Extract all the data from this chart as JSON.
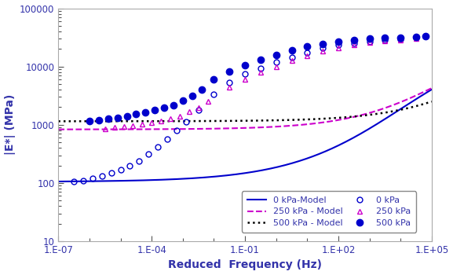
{
  "title": "",
  "xlabel": "Reduced  Frequency (Hz)",
  "ylabel": "|E*| (MPa)",
  "xlim_log": [
    -7,
    5
  ],
  "ylim_log": [
    1,
    5
  ],
  "background_color": "#ffffff",
  "model_0kPa": {
    "label": "0 kPa-Model",
    "color": "#0000cc",
    "linestyle": "solid",
    "linewidth": 1.5,
    "params": {
      "delta": 2.02,
      "alpha": 2.5,
      "beta": 2.2,
      "gamma": -0.55
    }
  },
  "model_250kPa": {
    "label": "250 kPa - Model",
    "color": "#cc00cc",
    "linestyle": "dashed",
    "linewidth": 1.5,
    "params": {
      "delta": 2.92,
      "alpha": 1.62,
      "beta": 3.5,
      "gamma": -0.65
    }
  },
  "model_500kPa": {
    "label": "500 kPa - Model",
    "color": "#000000",
    "linestyle": "dotted",
    "linewidth": 1.8,
    "params": {
      "delta": 3.06,
      "alpha": 1.52,
      "beta": 4.5,
      "gamma": -0.65
    }
  },
  "data_0kPa": {
    "label": "0 kPa",
    "color": "#0000cc",
    "marker": "o",
    "fillstyle": "none",
    "markersize": 5,
    "log_freq": [
      -6.5,
      -6.2,
      -5.9,
      -5.6,
      -5.3,
      -5.0,
      -4.7,
      -4.4,
      -4.1,
      -3.8,
      -3.5,
      -3.2,
      -2.9,
      -2.5,
      -2.0,
      -1.5,
      -1.0,
      -0.5,
      0.0,
      0.5,
      1.0,
      1.5,
      2.0,
      2.5,
      3.0,
      3.5,
      4.0,
      4.5
    ],
    "log_E": [
      2.02,
      2.04,
      2.08,
      2.12,
      2.18,
      2.23,
      2.3,
      2.38,
      2.5,
      2.62,
      2.75,
      2.9,
      3.05,
      3.25,
      3.52,
      3.72,
      3.87,
      3.97,
      4.07,
      4.16,
      4.24,
      4.32,
      4.37,
      4.4,
      4.43,
      4.45,
      4.47,
      4.49
    ]
  },
  "data_250kPa": {
    "label": "250 kPa",
    "color": "#cc00cc",
    "marker": "^",
    "fillstyle": "none",
    "markersize": 5,
    "log_freq": [
      -5.5,
      -5.2,
      -4.9,
      -4.6,
      -4.3,
      -4.0,
      -3.7,
      -3.4,
      -3.1,
      -2.8,
      -2.5,
      -2.2,
      -1.5,
      -1.0,
      -0.5,
      0.0,
      0.5,
      1.0,
      1.5,
      2.0,
      2.5,
      3.0,
      3.5,
      4.0,
      4.5
    ],
    "log_E": [
      2.93,
      2.95,
      2.97,
      2.99,
      3.01,
      3.04,
      3.07,
      3.1,
      3.15,
      3.22,
      3.3,
      3.4,
      3.65,
      3.78,
      3.9,
      4.0,
      4.1,
      4.18,
      4.26,
      4.32,
      4.37,
      4.41,
      4.44,
      4.46,
      4.48
    ]
  },
  "data_500kPa": {
    "label": "500 kPa",
    "color": "#0000cc",
    "marker": "o",
    "fillstyle": "full",
    "markersize": 6,
    "log_freq": [
      -6.0,
      -5.7,
      -5.4,
      -5.1,
      -4.8,
      -4.5,
      -4.2,
      -3.9,
      -3.6,
      -3.3,
      -3.0,
      -2.7,
      -2.4,
      -2.0,
      -1.5,
      -1.0,
      -0.5,
      0.0,
      0.5,
      1.0,
      1.5,
      2.0,
      2.5,
      3.0,
      3.5,
      4.0,
      4.5,
      4.8
    ],
    "log_E": [
      3.06,
      3.08,
      3.1,
      3.12,
      3.15,
      3.18,
      3.21,
      3.25,
      3.29,
      3.34,
      3.42,
      3.5,
      3.6,
      3.78,
      3.92,
      4.02,
      4.12,
      4.2,
      4.28,
      4.34,
      4.39,
      4.43,
      4.46,
      4.48,
      4.49,
      4.5,
      4.51,
      4.52
    ]
  },
  "xtick_labels": [
    "1.E-07",
    "1.E-04",
    "1.E-01",
    "1.E+02",
    "1.E+05"
  ],
  "xtick_positions": [
    -7,
    -4,
    -1,
    2,
    5
  ],
  "ytick_labels": [
    "10",
    "100",
    "1000",
    "10000",
    "100000"
  ],
  "ytick_positions": [
    1,
    2,
    3,
    4,
    5
  ]
}
